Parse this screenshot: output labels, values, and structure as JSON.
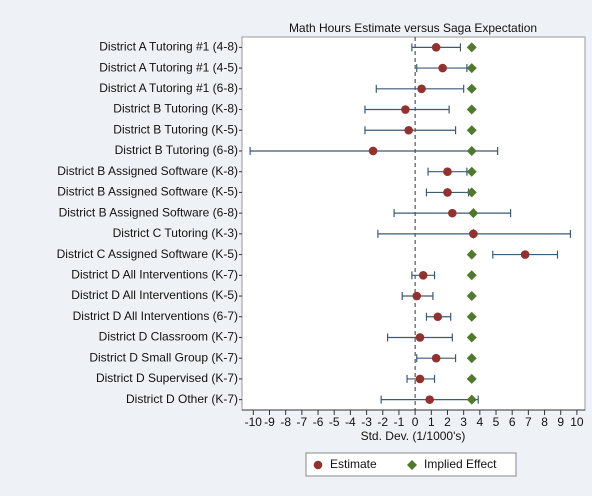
{
  "chart_data": {
    "type": "dot",
    "title": "Math Hours Estimate versus Saga Expectation",
    "x_label": "Std. Dev. (1/1000's)",
    "categories": [
      "District A Tutoring #1 (4-8)",
      "District A Tutoring #1 (4-5)",
      "District A Tutoring #1 (6-8)",
      "District B Tutoring (K-8)",
      "District B Tutoring (K-5)",
      "District B Tutoring (6-8)",
      "District B Assigned Software (K-8)",
      "District B Assigned Software (K-5)",
      "District B Assigned Software (6-8)",
      "District C Tutoring (K-3)",
      "District C Assigned Software (K-5)",
      "District D All Interventions (K-7)",
      "District D All Interventions (K-5)",
      "District D All Interventions (6-7)",
      "District D Classroom (K-7)",
      "District D Small Group (K-7)",
      "District D Supervised (K-7)",
      "District D Other (K-7)"
    ],
    "series": [
      {
        "name": "Estimate",
        "color": "#93312f",
        "ci_color": "#3c5a78",
        "values": [
          1.3,
          1.7,
          0.4,
          -0.6,
          -0.4,
          -2.6,
          2.0,
          2.0,
          2.3,
          3.6,
          6.8,
          0.5,
          0.1,
          1.4,
          0.3,
          1.3,
          0.3,
          0.9
        ],
        "lower": [
          -0.2,
          0.1,
          -2.4,
          -3.1,
          -3.1,
          -10.2,
          0.8,
          0.7,
          -1.3,
          -2.3,
          4.8,
          -0.2,
          -0.8,
          0.7,
          -1.7,
          0.1,
          -0.5,
          -2.1
        ],
        "upper": [
          2.8,
          3.2,
          3.0,
          2.1,
          2.5,
          5.1,
          3.2,
          3.3,
          5.9,
          9.6,
          8.8,
          1.2,
          1.1,
          2.2,
          2.3,
          2.5,
          1.2,
          3.9
        ]
      },
      {
        "name": "Implied Effect",
        "color": "#4f7a2b",
        "values": [
          3.5,
          3.5,
          3.5,
          3.5,
          3.5,
          3.5,
          3.5,
          3.5,
          3.6,
          3.6,
          3.5,
          3.5,
          3.5,
          3.5,
          3.5,
          3.5,
          3.5,
          3.5
        ]
      }
    ],
    "xlim": [
      -10.7,
      10.5
    ],
    "xticks": [
      -10,
      -9,
      -8,
      -7,
      -6,
      -5,
      -4,
      -3,
      -2,
      -1,
      0,
      1,
      2,
      3,
      4,
      5,
      6,
      7,
      8,
      9,
      10
    ],
    "reference_line": 0,
    "legend": "bottom"
  }
}
